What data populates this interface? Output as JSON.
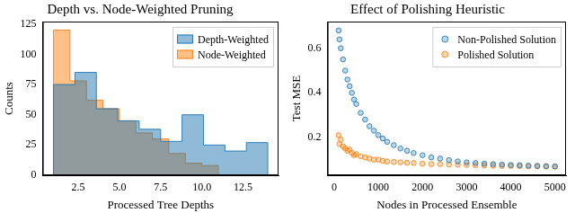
{
  "chart_data": [
    {
      "type": "histogram",
      "title": "Depth vs. Node-Weighted Pruning",
      "x_label": "Processed Tree Depths",
      "y_label": "Counts",
      "series": [
        {
          "name": "Depth-Weighted",
          "color": "#1f77b4",
          "bins": [
            1,
            2.3,
            3.6,
            4.9,
            6.2,
            7.5,
            8.8,
            10.1,
            11.4,
            12.7,
            14
          ],
          "counts": [
            75,
            85,
            55,
            45,
            38,
            28,
            50,
            25,
            20,
            27
          ]
        },
        {
          "name": "Node-Weighted",
          "color": "#ff7f0e",
          "bins": [
            1,
            2,
            3,
            4,
            5,
            6,
            7,
            8,
            9,
            10,
            11
          ],
          "counts": [
            120,
            78,
            62,
            55,
            45,
            35,
            30,
            18,
            10,
            8
          ]
        }
      ],
      "xlim": [
        0.35,
        14.65
      ],
      "ylim": [
        0,
        127
      ],
      "xticks": [
        2.5,
        {
          "value": 5,
          "label": "5.0"
        },
        7.5,
        {
          "value": 10,
          "label": "10.0"
        },
        12.5
      ],
      "yticks": [
        0,
        25,
        50,
        75,
        100,
        125
      ],
      "grid": false,
      "legend": "upper right"
    },
    {
      "type": "scatter",
      "title": "Effect of Polishing Heuristic",
      "x_label": "Nodes in Processed Ensemble",
      "y_label": "Test MSE",
      "series": [
        {
          "name": "Non-Polished Solution",
          "color": "#1f77b4",
          "marker": "circle",
          "x": [
            100,
            120,
            150,
            200,
            250,
            300,
            350,
            400,
            450,
            500,
            600,
            700,
            800,
            900,
            1000,
            1100,
            1200,
            1350,
            1500,
            1650,
            1800,
            2000,
            2200,
            2400,
            2600,
            2800,
            3000,
            3200,
            3400,
            3600,
            3800,
            4000,
            4200,
            4400,
            4600,
            4800,
            5000
          ],
          "values": [
            0.68,
            0.64,
            0.6,
            0.55,
            0.5,
            0.46,
            0.43,
            0.4,
            0.37,
            0.35,
            0.31,
            0.28,
            0.25,
            0.23,
            0.21,
            0.195,
            0.18,
            0.165,
            0.15,
            0.14,
            0.13,
            0.12,
            0.11,
            0.105,
            0.098,
            0.092,
            0.088,
            0.085,
            0.082,
            0.08,
            0.078,
            0.076,
            0.075,
            0.073,
            0.072,
            0.071,
            0.07
          ]
        },
        {
          "name": "Polished Solution",
          "color": "#ff7f0e",
          "marker": "circle",
          "x": [
            100,
            120,
            150,
            200,
            250,
            300,
            350,
            400,
            450,
            500,
            600,
            700,
            800,
            900,
            1000,
            1100,
            1200,
            1350,
            1500,
            1650,
            1800,
            2000,
            2200,
            2400,
            2600,
            2800,
            3000,
            3200,
            3400,
            3600,
            3800,
            4000,
            4200,
            4400,
            4600,
            4800,
            5000
          ],
          "values": [
            0.21,
            0.17,
            0.19,
            0.16,
            0.15,
            0.14,
            0.145,
            0.13,
            0.12,
            0.125,
            0.115,
            0.11,
            0.105,
            0.1,
            0.1,
            0.095,
            0.092,
            0.09,
            0.088,
            0.086,
            0.085,
            0.082,
            0.08,
            0.08,
            0.078,
            0.077,
            0.076,
            0.075,
            0.074,
            0.073,
            0.072,
            0.072,
            0.071,
            0.07,
            0.07,
            0.069,
            0.068
          ]
        }
      ],
      "xlim": [
        -150,
        5250
      ],
      "ylim": [
        0.03,
        0.72
      ],
      "xticks": [
        0,
        1000,
        2000,
        3000,
        4000,
        5000
      ],
      "yticks": [
        0.2,
        0.4,
        0.6
      ],
      "grid": false,
      "legend": "upper right"
    }
  ]
}
